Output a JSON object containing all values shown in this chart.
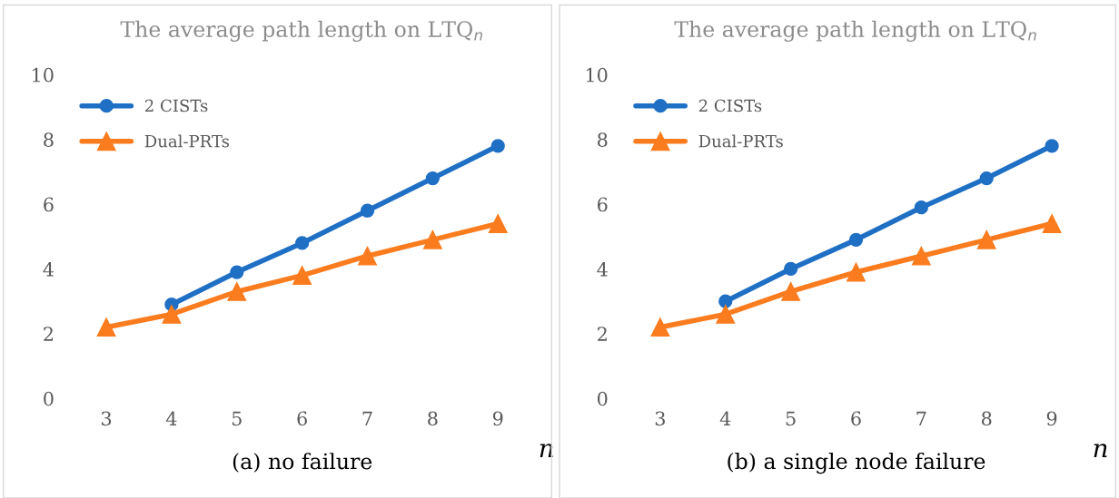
{
  "chart_data": [
    {
      "type": "line",
      "title": "The average path length on LTQ$_{n}$",
      "xlabel": "n",
      "categories": [
        "3",
        "4",
        "5",
        "6",
        "7",
        "8",
        "9"
      ],
      "ylim": [
        0,
        10
      ],
      "yticks": [
        0,
        2,
        4,
        6,
        8,
        10
      ],
      "grid": false,
      "legend": "top left",
      "line_style": "solid",
      "annotations": [
        "(a) no failure"
      ],
      "series": [
        {
          "name": "2 CISTs",
          "color": "#1f6fc5",
          "marker": "circle",
          "values": [
            null,
            2.9,
            3.9,
            4.8,
            5.8,
            6.8,
            7.8
          ]
        },
        {
          "name": "Dual-PRTs",
          "color": "#fb7c1f",
          "marker": "triangle",
          "values": [
            2.2,
            2.6,
            3.3,
            3.8,
            4.4,
            4.9,
            5.4
          ]
        }
      ]
    },
    {
      "type": "line",
      "title": "The average path length on LTQ$_{n}$",
      "xlabel": "n",
      "categories": [
        "3",
        "4",
        "5",
        "6",
        "7",
        "8",
        "9"
      ],
      "ylim": [
        0,
        10
      ],
      "yticks": [
        0,
        2,
        4,
        6,
        8,
        10
      ],
      "grid": false,
      "legend": "top left",
      "line_style": "solid",
      "annotations": [
        "(b) a single node failure"
      ],
      "series": [
        {
          "name": "2 CISTs",
          "color": "#1f6fc5",
          "marker": "circle",
          "values": [
            null,
            3.0,
            4.0,
            4.9,
            5.9,
            6.8,
            7.8
          ]
        },
        {
          "name": "Dual-PRTs",
          "color": "#fb7c1f",
          "marker": "triangle",
          "values": [
            2.2,
            2.6,
            3.3,
            3.9,
            4.4,
            4.9,
            5.4
          ]
        }
      ]
    }
  ]
}
